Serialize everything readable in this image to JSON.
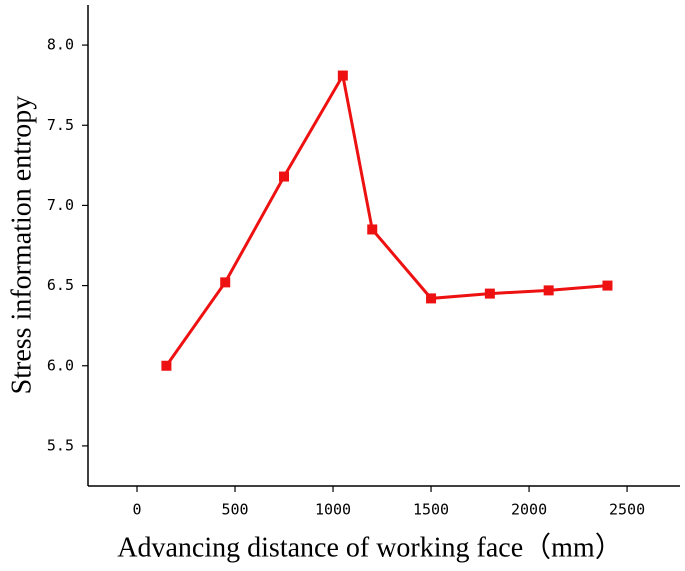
{
  "chart_data": {
    "type": "line",
    "x_label": "Advancing distance of working face（mm）",
    "y_label": "Stress information entropy",
    "x": [
      150,
      450,
      750,
      1050,
      1200,
      1500,
      1800,
      2100,
      2400
    ],
    "series": [
      {
        "color": "#ee1111",
        "values": [
          6.0,
          6.52,
          7.18,
          7.81,
          6.85,
          6.42,
          6.45,
          6.47,
          6.5
        ]
      }
    ],
    "xlim": [
      -250,
      2770
    ],
    "xticks": [
      0,
      500,
      1000,
      1500,
      2000,
      2500
    ],
    "ylim": [
      5.25,
      8.25
    ],
    "yticks": [
      5.5,
      {
        "value": 6,
        "label": "6.0"
      },
      6.5,
      {
        "value": 7,
        "label": "7.0"
      },
      7.5,
      {
        "value": 8,
        "label": "8.0"
      }
    ]
  }
}
